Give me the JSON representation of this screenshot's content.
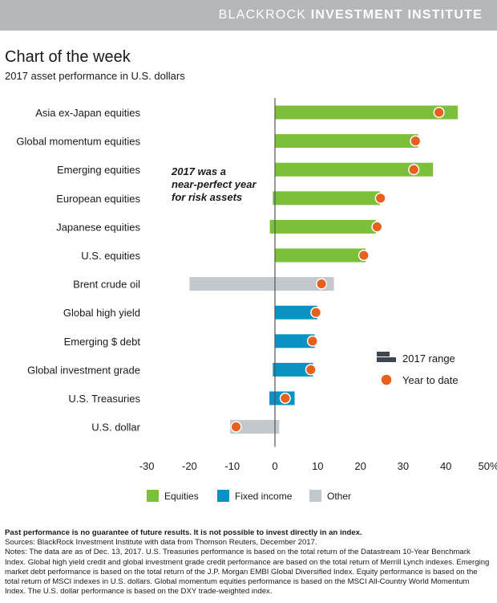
{
  "header": {
    "brand_light": "BLACKROCK",
    "brand_bold": "INVESTMENT INSTITUTE"
  },
  "title": "Chart of the week",
  "subtitle": "2017 asset performance in U.S. dollars",
  "annotation": [
    "2017 was a",
    "near-perfect year",
    "for risk assets"
  ],
  "colors": {
    "Equities": "#7cbf3a",
    "Fixed income": "#0a93c2",
    "Other": "#c3c8cd",
    "ytd": "#e8601c",
    "range_legend": "#3f4650",
    "axis": "#555555",
    "header_bg": "#b5b7ba"
  },
  "chart_data": {
    "type": "bar",
    "orientation": "horizontal",
    "xlim": [
      -30,
      50
    ],
    "xticks": [
      "-30",
      "-20",
      "-10",
      "0",
      "10",
      "20",
      "30",
      "40",
      "50%"
    ],
    "xtick_values": [
      -30,
      -20,
      -10,
      0,
      10,
      20,
      30,
      40,
      50
    ],
    "categories": [
      "Asia ex-Japan equities",
      "Global momentum equities",
      "Emerging equities",
      "European equities",
      "Japanese equities",
      "U.S. equities",
      "Brent crude oil",
      "Global high yield",
      "Emerging $ debt",
      "Global investment grade",
      "U.S. Treasuries",
      "U.S. dollar"
    ],
    "groups": [
      "Equities",
      "Equities",
      "Equities",
      "Equities",
      "Equities",
      "Equities",
      "Other",
      "Fixed income",
      "Fixed income",
      "Fixed income",
      "Fixed income",
      "Other"
    ],
    "range_low": [
      0,
      0,
      0,
      -0.5,
      -1.2,
      0,
      -20,
      0,
      0,
      -0.5,
      -1.3,
      -10.5
    ],
    "range_high": [
      42.8,
      33.5,
      37,
      24.6,
      23.6,
      21.2,
      13.8,
      9.9,
      9.3,
      8.9,
      4.6,
      1
    ],
    "year_to_date": [
      38.4,
      32.9,
      32.5,
      24.7,
      23.9,
      20.8,
      10.9,
      9.6,
      8.8,
      8.4,
      2.4,
      -9.1
    ],
    "legend_top": {
      "range": "2017 range",
      "ytd": "Year to date"
    },
    "legend_bottom": [
      "Equities",
      "Fixed income",
      "Other"
    ]
  },
  "footer": {
    "disclaimer": "Past performance is no guarantee of future results. It is not possible to invest directly in an index.",
    "sources": "Sources: BlackRock Investment Institute with data from Thomson Reuters, December 2017.",
    "notes": "Notes: The data are as of Dec. 13, 2017. U.S. Treasuries performance is based on the total return of the Datastream 10-Year Benchmark Index. Global high yield credit and global investment grade credit performance are based on the total return of Merrill Lynch indexes. Emerging market debt performance is based on the total return of the J.P. Morgan EMBI Global Diversified Index. Equity performance is based on the total return of MSCI indexes in U.S. dollars. Global momentum equities performance is based on the MSCI All-Country World Momentum Index. The U.S. dollar performance is based on the DXY trade-weighted index."
  }
}
